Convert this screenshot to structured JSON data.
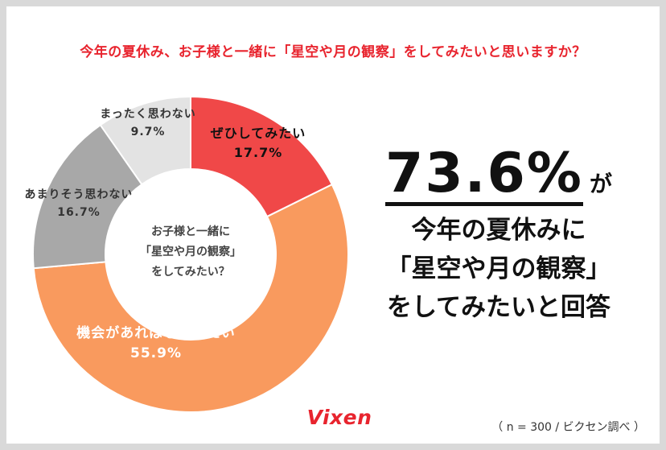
{
  "title": "今年の夏休み、お子様と一緒に「星空や月の観察」をしてみたいと思いますか？",
  "chart_data": {
    "type": "pie",
    "donut": true,
    "center_label": [
      "お子様と一緒に",
      "「星空や月の観察」",
      "をしてみたい？"
    ],
    "slices": [
      {
        "label": "ぜひしてみたい",
        "value": 17.7,
        "value_label": "17.7%",
        "color": "#f04848"
      },
      {
        "label": "機会があればしてみたい",
        "value": 55.9,
        "value_label": "55.9%",
        "color": "#f99a5e"
      },
      {
        "label": "あまりそう思わない",
        "value": 16.7,
        "value_label": "16.7%",
        "color": "#a8a8a8"
      },
      {
        "label": "まったく思わない",
        "value": 9.7,
        "value_label": "9.7%",
        "color": "#e3e3e3"
      }
    ]
  },
  "headline": {
    "percent": "73.6%",
    "particle": "が",
    "lines": [
      "今年の夏休みに",
      "「星空や月の観察」",
      "をしてみたいと回答"
    ]
  },
  "brand": "Vixen",
  "source": "（ n = 300 / ビクセン調べ ）"
}
